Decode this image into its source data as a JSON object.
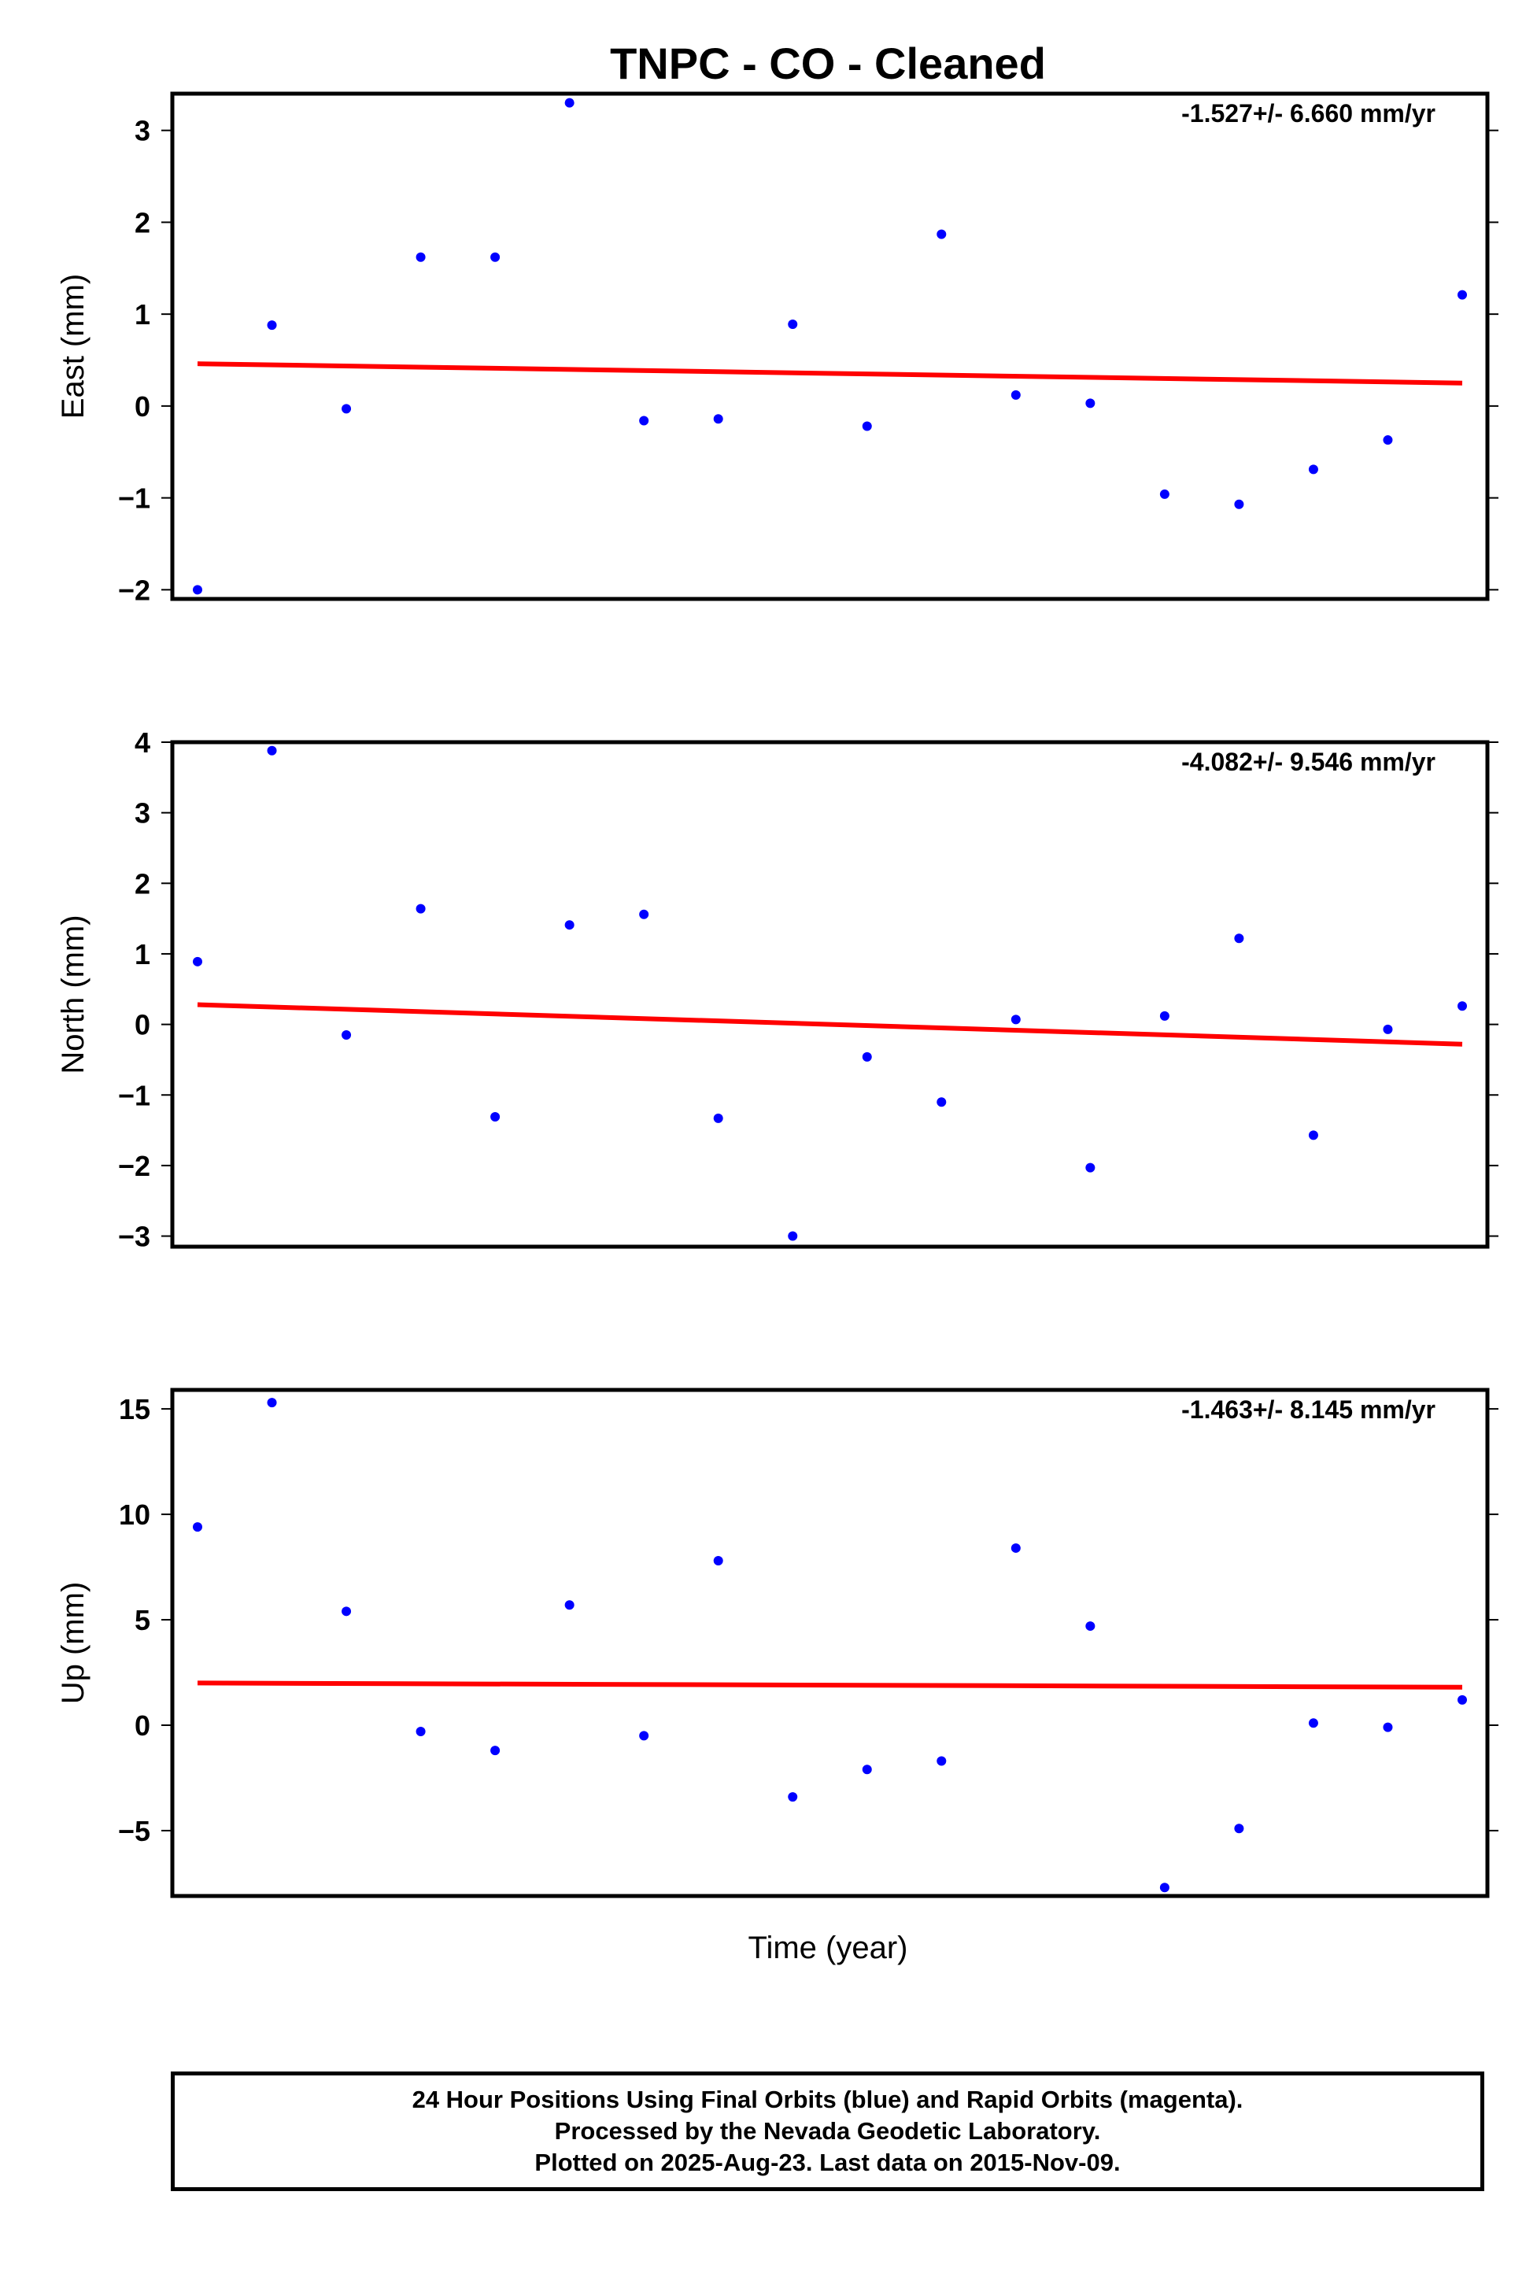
{
  "title": "TNPC  - CO - Cleaned",
  "xlabel": "Time (year)",
  "colors": {
    "final_orbits": "#0000ff",
    "trend": "#ff0000",
    "frame": "#000000"
  },
  "chart_data": [
    {
      "type": "scatter",
      "ylabel": "East (mm)",
      "rate_label": "-1.527+/- 6.660 mm/yr",
      "ylim": [
        -2.1,
        3.4
      ],
      "yticks": [
        3,
        2,
        1,
        0,
        -1,
        -2
      ],
      "ytick_labels": [
        "3",
        "2",
        "1",
        "0",
        "−1",
        "−2"
      ],
      "grid": false,
      "series": [
        {
          "x": [
            0,
            1,
            2,
            3,
            4,
            5,
            6,
            7,
            8,
            9,
            10,
            11,
            12,
            13,
            14,
            15,
            16,
            17
          ],
          "values": [
            -2.0,
            0.88,
            -0.03,
            1.62,
            1.62,
            3.3,
            -0.16,
            -0.14,
            0.89,
            -0.22,
            1.87,
            0.12,
            0.03,
            -0.96,
            -1.07,
            -0.69,
            -0.37,
            1.21
          ]
        }
      ],
      "trend": {
        "y_start": 0.46,
        "y_end": 0.25
      }
    },
    {
      "type": "scatter",
      "ylabel": "North (mm)",
      "rate_label": "-4.082+/- 9.546 mm/yr",
      "ylim": [
        -3.15,
        4.0
      ],
      "yticks": [
        4,
        3,
        2,
        1,
        0,
        -1,
        -2,
        -3
      ],
      "ytick_labels": [
        "4",
        "3",
        "2",
        "1",
        "0",
        "−1",
        "−2",
        "−3"
      ],
      "grid": false,
      "series": [
        {
          "x": [
            0,
            1,
            2,
            3,
            4,
            5,
            6,
            7,
            8,
            9,
            10,
            11,
            12,
            13,
            14,
            15,
            16,
            17
          ],
          "values": [
            0.89,
            3.88,
            -0.15,
            1.64,
            -1.31,
            1.41,
            1.56,
            -1.33,
            -3.0,
            -0.46,
            -1.1,
            0.07,
            -2.03,
            0.12,
            1.22,
            -1.57,
            -0.07,
            0.26
          ]
        }
      ],
      "trend": {
        "y_start": 0.28,
        "y_end": -0.28
      }
    },
    {
      "type": "scatter",
      "ylabel": "Up (mm)",
      "rate_label": "-1.463+/- 8.145 mm/yr",
      "ylim": [
        -8.1,
        15.9
      ],
      "yticks": [
        15,
        10,
        5,
        0,
        -5
      ],
      "ytick_labels": [
        "15",
        "10",
        "5",
        "0",
        "−5"
      ],
      "grid": false,
      "series": [
        {
          "x": [
            0,
            1,
            2,
            3,
            4,
            5,
            6,
            7,
            8,
            9,
            10,
            11,
            12,
            13,
            14,
            15,
            16,
            17
          ],
          "values": [
            9.4,
            15.3,
            5.4,
            -0.3,
            -1.2,
            5.7,
            -0.5,
            7.8,
            -3.4,
            -2.1,
            -1.7,
            8.4,
            4.7,
            -7.7,
            -4.9,
            0.1,
            -0.1,
            1.2
          ]
        }
      ],
      "trend": {
        "y_start": 2.0,
        "y_end": 1.8
      }
    }
  ],
  "footer": {
    "line1": "24 Hour Positions Using Final Orbits (blue) and Rapid Orbits (magenta).",
    "line2": "Processed by the Nevada Geodetic Laboratory.",
    "line3": "Plotted on 2025-Aug-23. Last data on 2015-Nov-09."
  }
}
